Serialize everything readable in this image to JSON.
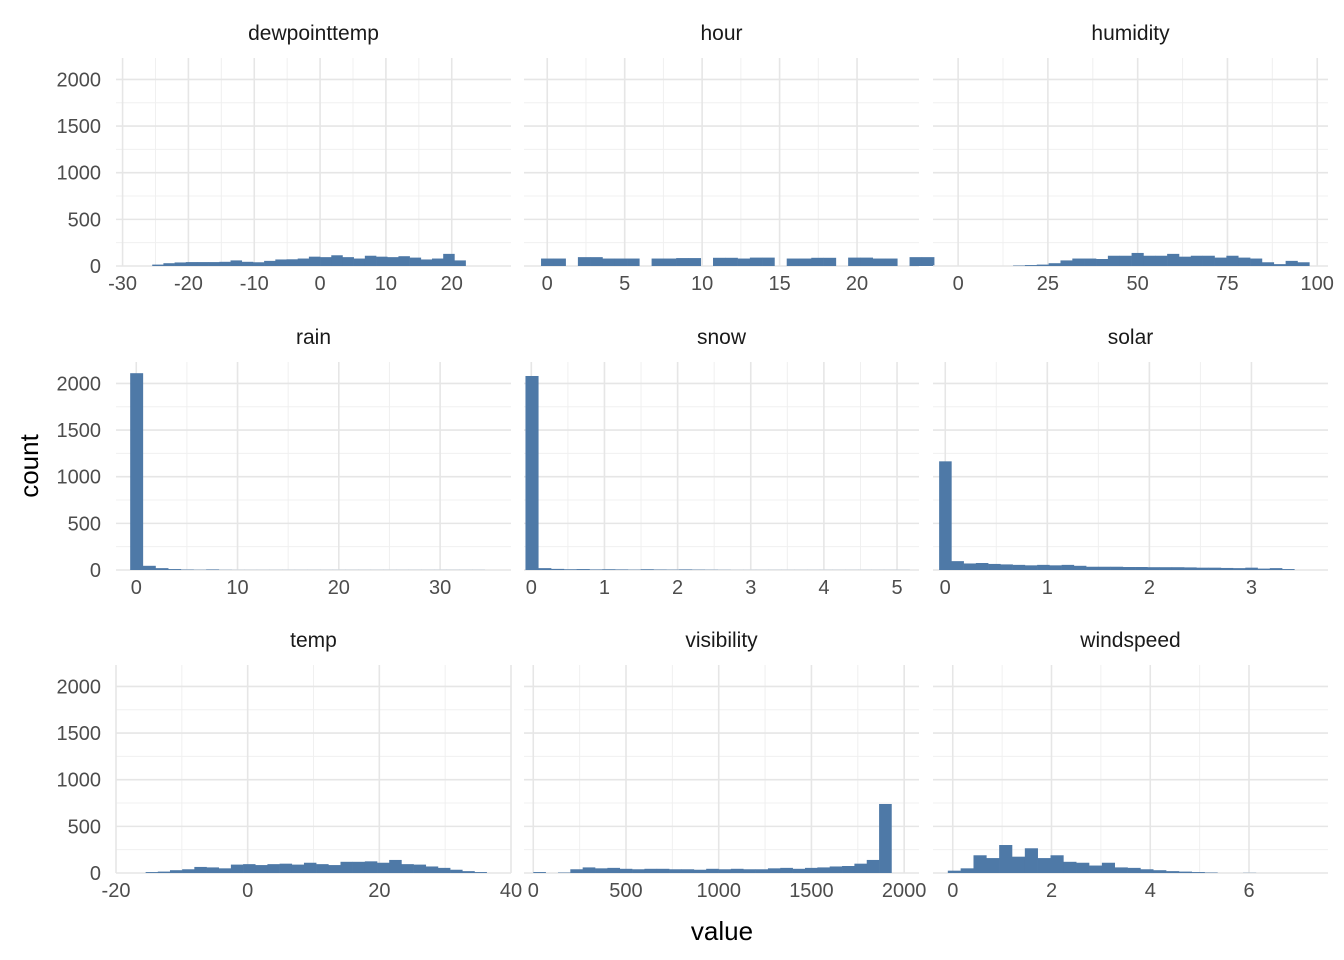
{
  "chart_data": {
    "type": "bar",
    "layout": "facet_wrap",
    "xlabel": "value",
    "ylabel": "count",
    "shared_y": true,
    "ylim": [
      0,
      2230
    ],
    "y_ticks": [
      0,
      500,
      1000,
      1500,
      2000
    ],
    "bar_color": "#4e79a7",
    "grid": true,
    "panels": [
      {
        "name": "dewpointtemp",
        "row": 0,
        "col": 0,
        "xlim": [
          -31,
          29
        ],
        "x_ticks": [
          -30,
          -20,
          -10,
          0,
          10,
          20
        ],
        "x_tick_labels": [
          "-30",
          "-20",
          "-10",
          "0",
          "10",
          "20"
        ],
        "bins": {
          "start": -25.5,
          "width": 1.7,
          "counts": [
            15,
            30,
            38,
            42,
            42,
            42,
            45,
            60,
            45,
            40,
            55,
            70,
            72,
            80,
            100,
            95,
            115,
            95,
            80,
            110,
            100,
            95,
            105,
            90,
            70,
            80,
            130,
            60
          ]
        }
      },
      {
        "name": "hour",
        "row": 0,
        "col": 1,
        "xlim": [
          -1.5,
          24
        ],
        "x_ticks": [
          0,
          5,
          10,
          15,
          20
        ],
        "x_tick_labels": [
          "0",
          "5",
          "10",
          "15",
          "20"
        ],
        "bins": {
          "start": -0.4,
          "width": 0.793,
          "counts": [
            80,
            80,
            0,
            95,
            95,
            80,
            80,
            80,
            0,
            80,
            80,
            85,
            85,
            0,
            88,
            88,
            80,
            90,
            90,
            0,
            80,
            80,
            88,
            88,
            0,
            90,
            90,
            80,
            80,
            0,
            95,
            95
          ]
        }
      },
      {
        "name": "humidity",
        "row": 0,
        "col": 2,
        "xlim": [
          -7,
          103
        ],
        "x_ticks": [
          0,
          25,
          50,
          75,
          100
        ],
        "x_tick_labels": [
          "0",
          "25",
          "50",
          "75",
          "100"
        ],
        "bins": {
          "start": 15.3,
          "width": 3.3,
          "counts": [
            5,
            10,
            15,
            30,
            60,
            80,
            80,
            75,
            110,
            110,
            140,
            110,
            110,
            130,
            100,
            110,
            110,
            90,
            110,
            90,
            80,
            40,
            20,
            55,
            40
          ]
        }
      },
      {
        "name": "rain",
        "row": 1,
        "col": 0,
        "xlim": [
          -2,
          37
        ],
        "x_ticks": [
          0,
          10,
          20,
          30
        ],
        "x_tick_labels": [
          "0",
          "10",
          "20",
          "30"
        ],
        "bins": {
          "start": -0.6,
          "width": 1.25,
          "counts": [
            2110,
            45,
            20,
            10,
            5,
            3,
            6,
            2,
            1,
            1,
            1,
            1,
            1,
            1,
            1,
            1,
            1,
            1,
            1,
            1,
            1,
            1,
            1,
            1,
            1,
            1,
            1,
            1
          ]
        }
      },
      {
        "name": "snow",
        "row": 1,
        "col": 1,
        "xlim": [
          -0.1,
          5.3
        ],
        "x_ticks": [
          0,
          1,
          2,
          3,
          4,
          5
        ],
        "x_tick_labels": [
          "0",
          "1",
          "2",
          "3",
          "4",
          "5"
        ],
        "bins": {
          "start": -0.08,
          "width": 0.175,
          "counts": [
            2080,
            20,
            12,
            8,
            10,
            6,
            8,
            6,
            4,
            8,
            5,
            4,
            6,
            4,
            3,
            2,
            1,
            1,
            1,
            1,
            1,
            1,
            1,
            1,
            1,
            1,
            1,
            1,
            1,
            1
          ]
        }
      },
      {
        "name": "solar",
        "row": 1,
        "col": 2,
        "xlim": [
          -0.12,
          3.75
        ],
        "x_ticks": [
          0,
          1,
          2,
          3
        ],
        "x_tick_labels": [
          "0",
          "1",
          "2",
          "3"
        ],
        "bins": {
          "start": -0.06,
          "width": 0.12,
          "counts": [
            1165,
            95,
            70,
            75,
            65,
            60,
            55,
            50,
            55,
            50,
            55,
            45,
            35,
            35,
            35,
            32,
            32,
            30,
            30,
            30,
            28,
            25,
            25,
            22,
            20,
            25,
            15,
            20,
            10
          ]
        }
      },
      {
        "name": "temp",
        "row": 2,
        "col": 0,
        "xlim": [
          -20,
          40
        ],
        "x_ticks": [
          -20,
          0,
          20,
          40
        ],
        "x_tick_labels": [
          "-20",
          "0",
          "20",
          "40"
        ],
        "bins": {
          "start": -15.5,
          "width": 1.85,
          "counts": [
            10,
            15,
            30,
            40,
            65,
            60,
            50,
            90,
            95,
            85,
            95,
            100,
            90,
            110,
            95,
            85,
            120,
            120,
            125,
            110,
            140,
            95,
            90,
            70,
            55,
            35,
            20,
            10
          ]
        }
      },
      {
        "name": "visibility",
        "row": 2,
        "col": 1,
        "xlim": [
          -50,
          2080
        ],
        "x_ticks": [
          0,
          500,
          1000,
          1500,
          2000
        ],
        "x_tick_labels": [
          "0",
          "500",
          "1000",
          "1500",
          "2000"
        ],
        "bins": {
          "start": 0,
          "width": 66.6,
          "counts": [
            10,
            0,
            5,
            40,
            60,
            50,
            55,
            45,
            40,
            45,
            45,
            40,
            40,
            35,
            45,
            40,
            45,
            40,
            40,
            50,
            55,
            45,
            55,
            60,
            70,
            75,
            100,
            140,
            740
          ]
        }
      },
      {
        "name": "windspeed",
        "row": 2,
        "col": 2,
        "xlim": [
          -0.4,
          7.6
        ],
        "x_ticks": [
          0,
          2,
          4,
          6
        ],
        "x_tick_labels": [
          "0",
          "2",
          "4",
          "6"
        ],
        "bins": {
          "start": -0.1,
          "width": 0.26,
          "counts": [
            25,
            50,
            190,
            160,
            300,
            175,
            265,
            160,
            190,
            120,
            110,
            80,
            110,
            60,
            55,
            40,
            30,
            20,
            15,
            10,
            5,
            0,
            0,
            2
          ]
        }
      }
    ]
  }
}
